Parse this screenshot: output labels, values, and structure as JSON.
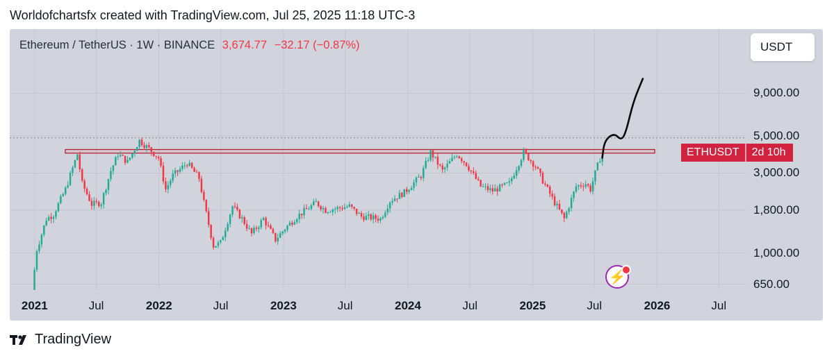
{
  "caption": "Worldofchartsfx created with TradingView.com, Jul 25, 2025 11:18 UTC-3",
  "legend": {
    "symbol": "Ethereum / TetherUS · 1W · BINANCE",
    "price": "3,674.77",
    "change": "−32.17 (−0.87%)"
  },
  "currency": "USDT",
  "tag": {
    "name": "ETHUSDT",
    "time": "2d 10h"
  },
  "footer": {
    "brand": "TradingView"
  },
  "colors": {
    "up": "#22ab94",
    "down": "#f23645",
    "background": "#d1d4dc",
    "tag": "#d1233f"
  },
  "chart_data": {
    "type": "candlestick",
    "title": "Ethereum / TetherUS · 1W · BINANCE",
    "scale": "log",
    "ylim": [
      600,
      13500
    ],
    "y_ticks": [
      9000,
      5000,
      3000,
      1800,
      1000,
      650
    ],
    "y_tick_labels": [
      "9,000.00",
      "5,000.00",
      "3,000.00",
      "1,800.00",
      "1,000.00",
      "650.00"
    ],
    "x_ticks": [
      {
        "label": "2021",
        "date": "2021-01-01",
        "bold": true
      },
      {
        "label": "Jul",
        "date": "2021-07-01",
        "bold": false
      },
      {
        "label": "2022",
        "date": "2022-01-01",
        "bold": true
      },
      {
        "label": "Jul",
        "date": "2022-07-01",
        "bold": false
      },
      {
        "label": "2023",
        "date": "2023-01-01",
        "bold": true
      },
      {
        "label": "Jul",
        "date": "2023-07-01",
        "bold": false
      },
      {
        "label": "2024",
        "date": "2024-01-01",
        "bold": true
      },
      {
        "label": "Jul",
        "date": "2024-07-01",
        "bold": false
      },
      {
        "label": "2025",
        "date": "2025-01-01",
        "bold": true
      },
      {
        "label": "Jul",
        "date": "2025-07-01",
        "bold": false
      },
      {
        "label": "2026",
        "date": "2026-01-01",
        "bold": true
      },
      {
        "label": "Jul",
        "date": "2026-07-01",
        "bold": false
      }
    ],
    "date_range": [
      "2020-10-20",
      "2026-09-20"
    ],
    "grid": true,
    "ath_level": 4870,
    "resistance_zone": {
      "from": "2021-04-01",
      "to": "2025-12-25",
      "low": 3950,
      "high": 4150
    },
    "price_path": [
      [
        "2020-12-28",
        600
      ],
      [
        "2021-01-11",
        1050
      ],
      [
        "2021-02-08",
        1600
      ],
      [
        "2021-03-01",
        1700
      ],
      [
        "2021-04-05",
        2400
      ],
      [
        "2021-05-10",
        3900
      ],
      [
        "2021-05-24",
        2600
      ],
      [
        "2021-06-21",
        1950
      ],
      [
        "2021-07-19",
        2000
      ],
      [
        "2021-08-16",
        3100
      ],
      [
        "2021-09-06",
        3900
      ],
      [
        "2021-10-04",
        3500
      ],
      [
        "2021-11-08",
        4700
      ],
      [
        "2021-12-06",
        4200
      ],
      [
        "2022-01-03",
        3700
      ],
      [
        "2022-01-24",
        2400
      ],
      [
        "2022-02-14",
        2900
      ],
      [
        "2022-03-28",
        3450
      ],
      [
        "2022-05-02",
        2800
      ],
      [
        "2022-05-16",
        2000
      ],
      [
        "2022-06-13",
        1100
      ],
      [
        "2022-07-04",
        1150
      ],
      [
        "2022-08-08",
        1900
      ],
      [
        "2022-09-05",
        1600
      ],
      [
        "2022-10-03",
        1300
      ],
      [
        "2022-11-07",
        1600
      ],
      [
        "2022-12-12",
        1200
      ],
      [
        "2023-01-09",
        1400
      ],
      [
        "2023-02-13",
        1650
      ],
      [
        "2023-04-10",
        2000
      ],
      [
        "2023-05-08",
        1800
      ],
      [
        "2023-07-17",
        1900
      ],
      [
        "2023-08-21",
        1650
      ],
      [
        "2023-10-16",
        1600
      ],
      [
        "2023-11-13",
        2050
      ],
      [
        "2023-12-25",
        2300
      ],
      [
        "2024-02-12",
        2900
      ],
      [
        "2024-03-11",
        4000
      ],
      [
        "2024-04-15",
        3100
      ],
      [
        "2024-05-27",
        3900
      ],
      [
        "2024-06-24",
        3400
      ],
      [
        "2024-08-05",
        2500
      ],
      [
        "2024-09-09",
        2350
      ],
      [
        "2024-10-28",
        2600
      ],
      [
        "2024-12-09",
        4000
      ],
      [
        "2025-01-13",
        3300
      ],
      [
        "2025-02-03",
        2700
      ],
      [
        "2025-03-10",
        2000
      ],
      [
        "2025-04-07",
        1600
      ],
      [
        "2025-05-12",
        2500
      ],
      [
        "2025-06-09",
        2600
      ],
      [
        "2025-06-23",
        2400
      ],
      [
        "2025-07-07",
        3000
      ],
      [
        "2025-07-21",
        3675
      ]
    ],
    "drawn_projection": [
      [
        "2025-07-24",
        3700
      ],
      [
        "2025-07-31",
        4700
      ],
      [
        "2025-08-28",
        5200
      ],
      [
        "2025-09-18",
        4700
      ],
      [
        "2025-10-02",
        5300
      ],
      [
        "2025-10-23",
        8000
      ],
      [
        "2025-11-20",
        11000
      ]
    ]
  }
}
